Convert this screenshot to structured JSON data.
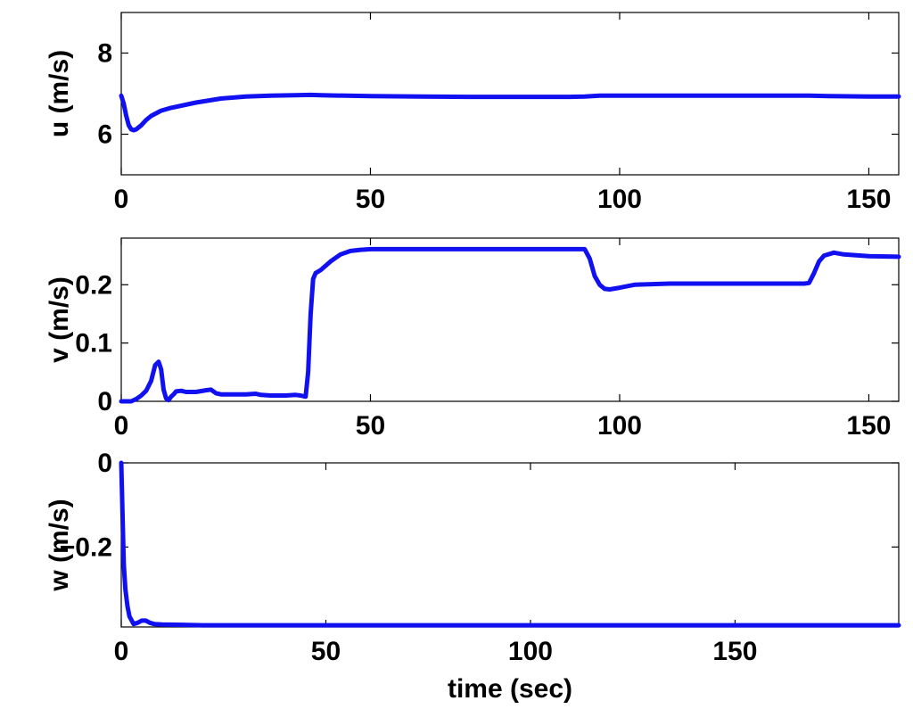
{
  "figure": {
    "shared_xlabel": "time (sec)"
  },
  "chart_data": [
    {
      "type": "line",
      "ylabel": "u (m/s)",
      "xlabel": "",
      "xlim": [
        0,
        156
      ],
      "ylim": [
        5,
        9
      ],
      "xticks": [
        0,
        50,
        100,
        150
      ],
      "yticks": [
        6,
        8
      ],
      "ytick_labels": [
        "6",
        "8"
      ],
      "grid": false,
      "series": [
        {
          "color": "#1010f0",
          "x": [
            0,
            0.5,
            1,
            1.5,
            2,
            2.5,
            3,
            4,
            5,
            6,
            8,
            10,
            15,
            20,
            25,
            30,
            35,
            38,
            40,
            45,
            50,
            60,
            70,
            80,
            90,
            93,
            96,
            100,
            110,
            120,
            130,
            138,
            142,
            150,
            156
          ],
          "y": [
            6.95,
            6.75,
            6.45,
            6.22,
            6.12,
            6.1,
            6.12,
            6.22,
            6.35,
            6.45,
            6.58,
            6.65,
            6.78,
            6.88,
            6.93,
            6.95,
            6.96,
            6.97,
            6.96,
            6.95,
            6.94,
            6.93,
            6.92,
            6.92,
            6.92,
            6.93,
            6.95,
            6.95,
            6.95,
            6.95,
            6.95,
            6.95,
            6.94,
            6.93,
            6.93
          ]
        }
      ]
    },
    {
      "type": "line",
      "ylabel": "v (m/s)",
      "xlabel": "",
      "xlim": [
        0,
        156
      ],
      "ylim": [
        0,
        0.28
      ],
      "xticks": [
        0,
        50,
        100,
        150
      ],
      "yticks": [
        0,
        0.1,
        0.2
      ],
      "ytick_labels": [
        "0",
        "0.1",
        "0.2"
      ],
      "grid": false,
      "series": [
        {
          "color": "#1010f0",
          "x": [
            0,
            2,
            3,
            4,
            5,
            6,
            6.8,
            7.5,
            8,
            8.5,
            9,
            9.5,
            10,
            10.5,
            11,
            12,
            13,
            15,
            17,
            18,
            19,
            20,
            22,
            25,
            27,
            28,
            30,
            33,
            35,
            36,
            37,
            37.5,
            38,
            38.5,
            39,
            40,
            42,
            44,
            46,
            48,
            50,
            60,
            70,
            80,
            90,
            93,
            94,
            95,
            96,
            97,
            98,
            100,
            103,
            110,
            120,
            130,
            137,
            138,
            139,
            140,
            141,
            143,
            145,
            150,
            156
          ],
          "y": [
            0,
            0,
            0.004,
            0.01,
            0.018,
            0.035,
            0.062,
            0.068,
            0.055,
            0.02,
            0.005,
            0.002,
            0.008,
            0.012,
            0.017,
            0.018,
            0.016,
            0.016,
            0.019,
            0.02,
            0.014,
            0.012,
            0.012,
            0.012,
            0.013,
            0.011,
            0.01,
            0.01,
            0.011,
            0.01,
            0.008,
            0.05,
            0.15,
            0.21,
            0.22,
            0.225,
            0.24,
            0.252,
            0.258,
            0.26,
            0.261,
            0.261,
            0.261,
            0.261,
            0.261,
            0.261,
            0.245,
            0.215,
            0.2,
            0.193,
            0.192,
            0.195,
            0.2,
            0.202,
            0.202,
            0.202,
            0.202,
            0.203,
            0.22,
            0.24,
            0.25,
            0.255,
            0.252,
            0.249,
            0.248
          ]
        }
      ]
    },
    {
      "type": "line",
      "ylabel": "w (m/s)",
      "xlabel": "time (sec)",
      "xlim": [
        0,
        190
      ],
      "ylim": [
        -0.39,
        0
      ],
      "xticks": [
        0,
        50,
        100,
        150
      ],
      "yticks": [
        -0.2,
        0
      ],
      "ytick_labels": [
        "−0.2",
        "0"
      ],
      "grid": false,
      "series": [
        {
          "color": "#1010f0",
          "x": [
            0,
            0.3,
            0.6,
            1,
            1.5,
            2,
            3,
            4,
            5,
            6,
            7,
            8,
            10,
            15,
            20,
            30,
            40,
            60,
            100,
            150,
            190
          ],
          "y": [
            0,
            -0.12,
            -0.24,
            -0.3,
            -0.34,
            -0.365,
            -0.383,
            -0.38,
            -0.375,
            -0.375,
            -0.38,
            -0.383,
            -0.384,
            -0.385,
            -0.386,
            -0.386,
            -0.386,
            -0.386,
            -0.386,
            -0.386,
            -0.386
          ]
        }
      ]
    }
  ]
}
